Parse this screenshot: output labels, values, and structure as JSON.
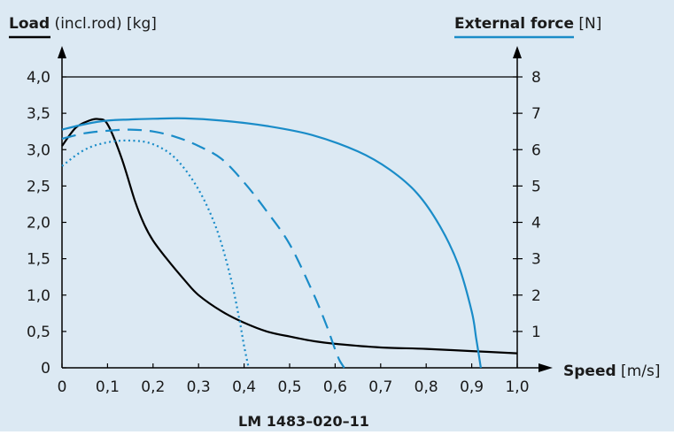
{
  "chart_data": {
    "type": "line",
    "left_axis": {
      "label_bold": "Load",
      "label_rest": " (incl.rod) [kg]",
      "ylim": [
        0,
        4.0
      ]
    },
    "right_axis": {
      "label_bold": "External force",
      "label_rest": " [N]",
      "ylim": [
        0,
        8
      ]
    },
    "x_axis": {
      "label_bold": "Speed",
      "label_rest": " [m/s]",
      "xlim": [
        0,
        1.0
      ]
    },
    "x_ticks": [
      "0",
      "0,1",
      "0,2",
      "0,3",
      "0,4",
      "0,5",
      "0,6",
      "0,7",
      "0,8",
      "0,9",
      "1,0"
    ],
    "x_tick_values": [
      0,
      0.1,
      0.2,
      0.3,
      0.4,
      0.5,
      0.6,
      0.7,
      0.8,
      0.9,
      1.0
    ],
    "left_ticks": [
      "0",
      "0,5",
      "1,0",
      "1,5",
      "2,0",
      "2,5",
      "3,0",
      "3,5",
      "4,0"
    ],
    "left_tick_values": [
      0,
      0.5,
      1.0,
      1.5,
      2.0,
      2.5,
      3.0,
      3.5,
      4.0
    ],
    "right_ticks": [
      "1",
      "2",
      "3",
      "4",
      "5",
      "6",
      "7",
      "8"
    ],
    "right_tick_values": [
      1,
      2,
      3,
      4,
      5,
      6,
      7,
      8
    ],
    "caption": "LM 1483–020–11",
    "colors": {
      "background": "#dce9f3",
      "load": "#000000",
      "force": "#1a8cc8"
    },
    "series": [
      {
        "axis": "left",
        "style": "solid",
        "color": "#000000",
        "x": [
          0,
          0.03,
          0.06,
          0.08,
          0.1,
          0.13,
          0.16,
          0.18,
          0.2,
          0.23,
          0.27,
          0.3,
          0.35,
          0.4,
          0.45,
          0.5,
          0.55,
          0.6,
          0.7,
          0.8,
          0.9,
          1.0
        ],
        "y": [
          3.05,
          3.3,
          3.4,
          3.42,
          3.35,
          2.9,
          2.3,
          1.98,
          1.75,
          1.5,
          1.2,
          1.0,
          0.78,
          0.62,
          0.5,
          0.43,
          0.37,
          0.33,
          0.28,
          0.26,
          0.23,
          0.2
        ]
      },
      {
        "axis": "right",
        "style": "solid",
        "color": "#1a8cc8",
        "x": [
          0,
          0.05,
          0.1,
          0.15,
          0.2,
          0.27,
          0.35,
          0.45,
          0.55,
          0.65,
          0.72,
          0.78,
          0.83,
          0.87,
          0.9,
          0.91,
          0.92
        ],
        "y": [
          6.55,
          6.7,
          6.8,
          6.83,
          6.85,
          6.86,
          6.8,
          6.65,
          6.4,
          5.95,
          5.45,
          4.8,
          3.9,
          2.85,
          1.55,
          0.8,
          0
        ]
      },
      {
        "axis": "right",
        "style": "dashed",
        "color": "#1a8cc8",
        "x": [
          0,
          0.05,
          0.1,
          0.15,
          0.2,
          0.25,
          0.3,
          0.35,
          0.4,
          0.45,
          0.5,
          0.55,
          0.58,
          0.6,
          0.61,
          0.62
        ],
        "y": [
          6.3,
          6.45,
          6.52,
          6.55,
          6.5,
          6.35,
          6.1,
          5.75,
          5.1,
          4.3,
          3.4,
          2.1,
          1.2,
          0.5,
          0.2,
          0
        ]
      },
      {
        "axis": "right",
        "style": "dotted",
        "color": "#1a8cc8",
        "x": [
          0,
          0.05,
          0.1,
          0.15,
          0.2,
          0.25,
          0.3,
          0.34,
          0.37,
          0.39,
          0.4,
          0.41
        ],
        "y": [
          5.55,
          6.0,
          6.2,
          6.25,
          6.15,
          5.75,
          4.9,
          3.8,
          2.5,
          1.3,
          0.6,
          0
        ]
      }
    ]
  }
}
